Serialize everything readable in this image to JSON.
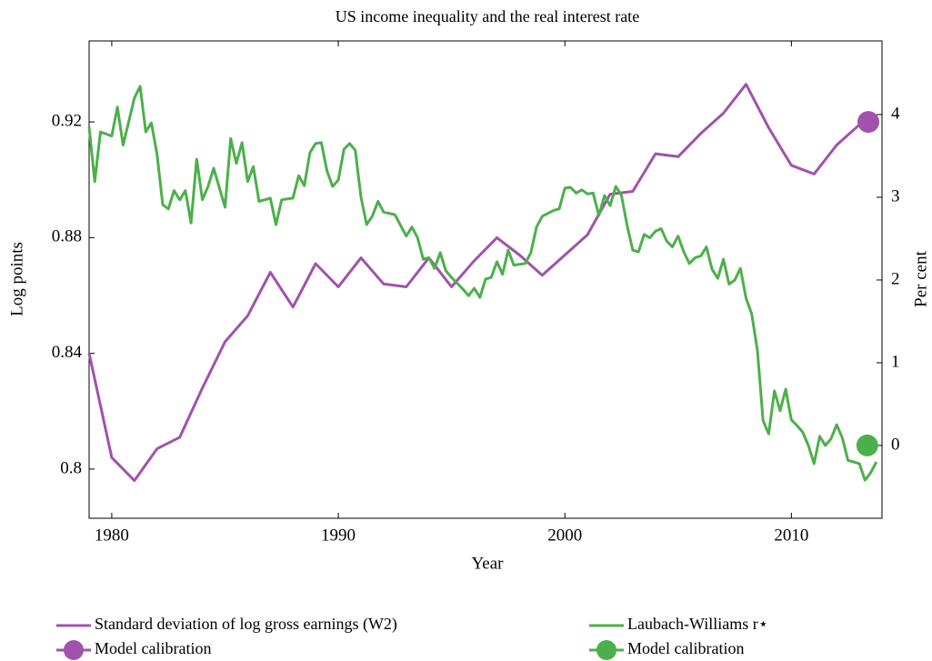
{
  "chart_data": {
    "type": "line",
    "title": "US income inequality and the real interest rate",
    "xlabel": "Year",
    "ylabel": "Log points",
    "y2label": "Per cent",
    "xlim": [
      1979,
      2014
    ],
    "xticks": [
      1980,
      1990,
      2000,
      2010
    ],
    "ylim": [
      0.783,
      0.948
    ],
    "yticks": [
      0.8,
      0.84,
      0.88,
      0.92
    ],
    "y2lim": [
      -0.88,
      4.89
    ],
    "y2ticks": [
      0,
      1,
      2,
      3,
      4
    ],
    "series": [
      {
        "name": "Standard deviation of log gross earnings (W2)",
        "type": "line",
        "axis": "y",
        "color": "#a052ad",
        "x": [
          1979,
          1980,
          1981,
          1982,
          1983,
          1984,
          1985,
          1986,
          1987,
          1988,
          1989,
          1990,
          1991,
          1992,
          1993,
          1994,
          1995,
          1996,
          1997,
          1998,
          1999,
          2000,
          2001,
          2002,
          2003,
          2004,
          2005,
          2006,
          2007,
          2008,
          2009,
          2010,
          2011,
          2012,
          2013
        ],
        "values": [
          0.84,
          0.804,
          0.796,
          0.807,
          0.811,
          0.828,
          0.844,
          0.853,
          0.868,
          0.856,
          0.871,
          0.863,
          0.873,
          0.864,
          0.863,
          0.873,
          0.863,
          0.872,
          0.88,
          0.874,
          0.867,
          0.874,
          0.881,
          0.895,
          0.896,
          0.909,
          0.908,
          0.916,
          0.923,
          0.933,
          0.918,
          0.905,
          0.902,
          0.912,
          0.919
        ]
      },
      {
        "name": "Model calibration",
        "type": "scatter",
        "axis": "y",
        "color": "#a052ad",
        "x": [
          2013.4
        ],
        "values": [
          0.92
        ]
      },
      {
        "name": "Laubach-Williams r⋆",
        "type": "line",
        "axis": "y2",
        "color": "#4cb04a",
        "x": [
          1979,
          1979.25,
          1979.5,
          1980,
          1980.25,
          1980.5,
          1981,
          1981.25,
          1981.5,
          1981.75,
          1982,
          1982.25,
          1982.5,
          1982.75,
          1983,
          1983.25,
          1983.5,
          1983.75,
          1984,
          1984.25,
          1984.5,
          1985,
          1985.25,
          1985.5,
          1985.75,
          1986,
          1986.25,
          1986.5,
          1987,
          1987.25,
          1987.5,
          1988,
          1988.25,
          1988.5,
          1988.75,
          1989,
          1989.25,
          1989.5,
          1989.75,
          1990,
          1990.25,
          1990.5,
          1990.75,
          1991,
          1991.25,
          1991.5,
          1991.75,
          1992,
          1992.5,
          1993,
          1993.25,
          1993.5,
          1993.75,
          1994,
          1994.25,
          1994.5,
          1994.75,
          1995,
          1995.5,
          1995.75,
          1996,
          1996.25,
          1996.5,
          1996.75,
          1997,
          1997.25,
          1997.5,
          1997.75,
          1998.25,
          1998.5,
          1998.75,
          1999,
          1999.5,
          1999.75,
          2000,
          2000.25,
          2000.5,
          2000.75,
          2001,
          2001.25,
          2001.5,
          2001.75,
          2002,
          2002.25,
          2002.5,
          2002.75,
          2003,
          2003.25,
          2003.5,
          2003.75,
          2004,
          2004.25,
          2004.5,
          2004.75,
          2005,
          2005.25,
          2005.5,
          2005.75,
          2006,
          2006.25,
          2006.5,
          2006.75,
          2007,
          2007.25,
          2007.5,
          2007.75,
          2008,
          2008.25,
          2008.5,
          2008.75,
          2009,
          2009.25,
          2009.5,
          2009.75,
          2010,
          2010.25,
          2010.5,
          2010.75,
          2011,
          2011.25,
          2011.5,
          2011.75,
          2012,
          2012.25,
          2012.5,
          2012.75,
          2013,
          2013.25,
          2013.5,
          2013.75
        ],
        "values": [
          3.85,
          3.19,
          3.79,
          3.74,
          4.09,
          3.63,
          4.2,
          4.34,
          3.79,
          3.9,
          3.52,
          2.91,
          2.86,
          3.08,
          2.97,
          3.08,
          2.69,
          3.46,
          2.97,
          3.13,
          3.35,
          2.88,
          3.71,
          3.41,
          3.66,
          3.19,
          3.37,
          2.95,
          2.99,
          2.67,
          2.97,
          2.99,
          3.26,
          3.14,
          3.54,
          3.65,
          3.66,
          3.32,
          3.13,
          3.21,
          3.58,
          3.65,
          3.57,
          3.0,
          2.67,
          2.77,
          2.95,
          2.82,
          2.79,
          2.53,
          2.64,
          2.51,
          2.25,
          2.27,
          2.14,
          2.33,
          2.11,
          2.03,
          1.89,
          1.81,
          1.9,
          1.79,
          2.01,
          2.03,
          2.22,
          2.07,
          2.36,
          2.18,
          2.2,
          2.33,
          2.64,
          2.77,
          2.84,
          2.86,
          3.11,
          3.12,
          3.05,
          3.09,
          3.04,
          3.05,
          2.78,
          3.02,
          2.9,
          3.13,
          3.02,
          2.66,
          2.36,
          2.34,
          2.55,
          2.51,
          2.59,
          2.62,
          2.47,
          2.4,
          2.53,
          2.34,
          2.2,
          2.27,
          2.29,
          2.4,
          2.13,
          2.02,
          2.25,
          1.95,
          2.0,
          2.14,
          1.78,
          1.59,
          1.15,
          0.3,
          0.14,
          0.66,
          0.42,
          0.68,
          0.31,
          0.24,
          0.16,
          0,
          -0.22,
          0.11,
          0,
          0.08,
          0.25,
          0.09,
          -0.18,
          -0.2,
          -0.22,
          -0.42,
          -0.33,
          -0.2
        ]
      },
      {
        "name": "Model calibration",
        "type": "scatter",
        "axis": "y2",
        "color": "#4cb04a",
        "x": [
          2013.35
        ],
        "values": [
          0
        ]
      }
    ]
  }
}
